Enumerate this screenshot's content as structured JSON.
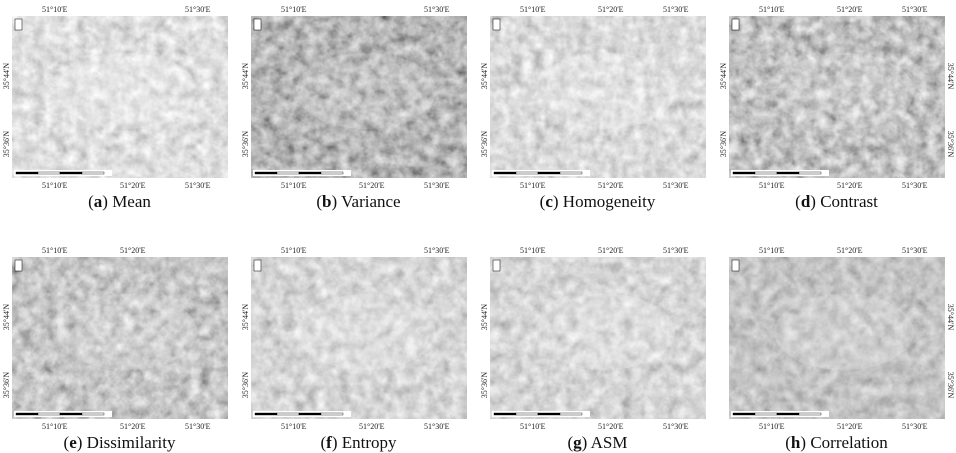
{
  "panels": [
    {
      "open": "(",
      "letter": "a",
      "close": ")",
      "name": "Mean",
      "top": [
        "51°10'E",
        "51°30'E"
      ],
      "bottom": [
        "51°10'E",
        "51°20'E",
        "51°30'E"
      ],
      "left": [
        "35°44'N",
        "35°36'N"
      ],
      "right": []
    },
    {
      "open": "(",
      "letter": "b",
      "close": ")",
      "name": "Variance",
      "top": [
        "51°10'E",
        "51°30'E"
      ],
      "bottom": [
        "51°10'E",
        "51°20'E",
        "51°30'E"
      ],
      "left": [
        "35°44'N",
        "35°36'N"
      ],
      "right": []
    },
    {
      "open": "(",
      "letter": "c",
      "close": ")",
      "name": "Homogeneity",
      "top": [
        "51°10'E",
        "51°20'E",
        "51°30'E"
      ],
      "bottom": [
        "51°10'E",
        "51°20'E",
        "51°30'E"
      ],
      "left": [
        "35°44'N",
        "35°36'N"
      ],
      "right": []
    },
    {
      "open": "(",
      "letter": "d",
      "close": ")",
      "name": "Contrast",
      "top": [
        "51°10'E",
        "51°20'E",
        "51°30'E"
      ],
      "bottom": [
        "51°10'E",
        "51°20'E",
        "51°30'E"
      ],
      "left": [
        "35°44'N",
        "35°36'N"
      ],
      "right": [
        "35°44'N",
        "35°36'N"
      ]
    },
    {
      "open": "(",
      "letter": "e",
      "close": ")",
      "name": "Dissimilarity",
      "top": [
        "51°10'E",
        "51°20'E"
      ],
      "bottom": [
        "51°10'E",
        "51°20'E",
        "51°30'E"
      ],
      "left": [
        "35°44'N",
        "35°36'N"
      ],
      "right": []
    },
    {
      "open": "(",
      "letter": "f",
      "close": ")",
      "name": "Entropy",
      "top": [
        "51°10'E",
        "51°30'E"
      ],
      "bottom": [
        "51°10'E",
        "51°20'E",
        "51°30'E"
      ],
      "left": [
        "35°44'N",
        "35°36'N"
      ],
      "right": []
    },
    {
      "open": "(",
      "letter": "g",
      "close": ")",
      "name": "ASM",
      "top": [
        "51°10'E",
        "51°20'E",
        "51°30'E"
      ],
      "bottom": [
        "51°10'E",
        "51°20'E",
        "51°30'E"
      ],
      "left": [
        "35°44'N",
        "35°36'N"
      ],
      "right": []
    },
    {
      "open": "(",
      "letter": "h",
      "close": ")",
      "name": "Correlation",
      "top": [
        "51°10'E",
        "51°20'E",
        "51°30'E"
      ],
      "bottom": [
        "51°10'E",
        "51°20'E",
        "51°30'E"
      ],
      "left": [],
      "right": [
        "35°44'N",
        "35°36'N"
      ]
    }
  ]
}
